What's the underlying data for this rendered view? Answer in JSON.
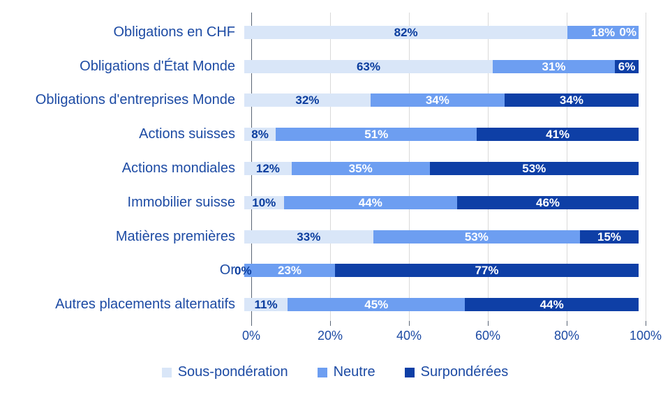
{
  "chart_data": {
    "type": "bar",
    "orientation": "horizontal",
    "stacked": true,
    "title": "",
    "xlabel": "",
    "ylabel": "",
    "xlim": [
      0,
      100
    ],
    "grid": true,
    "legend_position": "bottom",
    "value_suffix": "%",
    "categories": [
      "Obligations en CHF",
      "Obligations d'État Monde",
      "Obligations d'entreprises Monde",
      "Actions suisses",
      "Actions mondiales",
      "Immobilier suisse",
      "Matières premières",
      "Or",
      "Autres placements alternatifs"
    ],
    "series": [
      {
        "name": "Sous-pondération",
        "color": "#d9e6f8",
        "label_color": "#0a3d9e",
        "values": [
          82,
          63,
          32,
          8,
          12,
          10,
          33,
          0,
          11
        ]
      },
      {
        "name": "Neutre",
        "color": "#6d9ef1",
        "label_color": "#ffffff",
        "values": [
          18,
          31,
          34,
          51,
          35,
          44,
          53,
          23,
          45
        ]
      },
      {
        "name": "Surpondérées",
        "color": "#0e3fa6",
        "label_color": "#ffffff",
        "values": [
          0,
          6,
          34,
          41,
          53,
          46,
          15,
          77,
          44
        ]
      }
    ],
    "x_ticks": [
      "0%",
      "20%",
      "40%",
      "60%",
      "80%",
      "100%"
    ],
    "x_tick_values": [
      0,
      20,
      40,
      60,
      80,
      100
    ]
  },
  "colors": {
    "category_text": "#1d4ba4",
    "axis_text": "#1d4ba4",
    "gridline": "#d9d9d9",
    "axis_line": "#5a6575",
    "background": "#ffffff"
  }
}
